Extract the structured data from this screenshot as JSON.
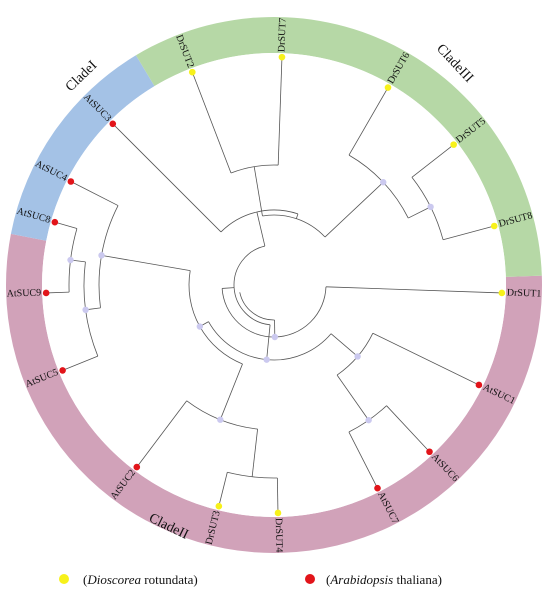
{
  "colors": {
    "cladeI": "#a4c2e6",
    "cladeII": "#d1a2b9",
    "cladeIII": "#b6d8a6",
    "dioscorea": "#f7f11a",
    "arabidopsis": "#e2141a",
    "node": "#cbc9ef"
  },
  "clades": [
    {
      "id": "cladeI",
      "label": "CladeI"
    },
    {
      "id": "cladeII",
      "label": "CladeII"
    },
    {
      "id": "cladeIII",
      "label": "CladeIII"
    }
  ],
  "leaves": [
    {
      "label": "DrSUT1",
      "species": "dioscorea"
    },
    {
      "label": "AtSUC1",
      "species": "arabidopsis"
    },
    {
      "label": "AtSUC6",
      "species": "arabidopsis"
    },
    {
      "label": "AtSUC7",
      "species": "arabidopsis"
    },
    {
      "label": "DrSUT4",
      "species": "dioscorea"
    },
    {
      "label": "DrSUT3",
      "species": "dioscorea"
    },
    {
      "label": "AtSUC2",
      "species": "arabidopsis"
    },
    {
      "label": "AtSUC5",
      "species": "arabidopsis"
    },
    {
      "label": "AtSUC9",
      "species": "arabidopsis"
    },
    {
      "label": "AtSUC8",
      "species": "arabidopsis"
    },
    {
      "label": "AtSUC4",
      "species": "arabidopsis"
    },
    {
      "label": "AtSUC3",
      "species": "arabidopsis"
    },
    {
      "label": "DrSUT2",
      "species": "dioscorea"
    },
    {
      "label": "DrSUT7",
      "species": "dioscorea"
    },
    {
      "label": "DrSUT6",
      "species": "dioscorea"
    },
    {
      "label": "DrSUT5",
      "species": "dioscorea"
    },
    {
      "label": "DrSUT8",
      "species": "dioscorea"
    }
  ],
  "legend": [
    {
      "species": "dioscorea",
      "prefix": "(",
      "genus": "Dioscorea",
      "epithet": " rotundata)"
    },
    {
      "species": "arabidopsis",
      "prefix": "(",
      "genus": "Arabidopsis",
      "epithet": " thaliana)"
    }
  ]
}
